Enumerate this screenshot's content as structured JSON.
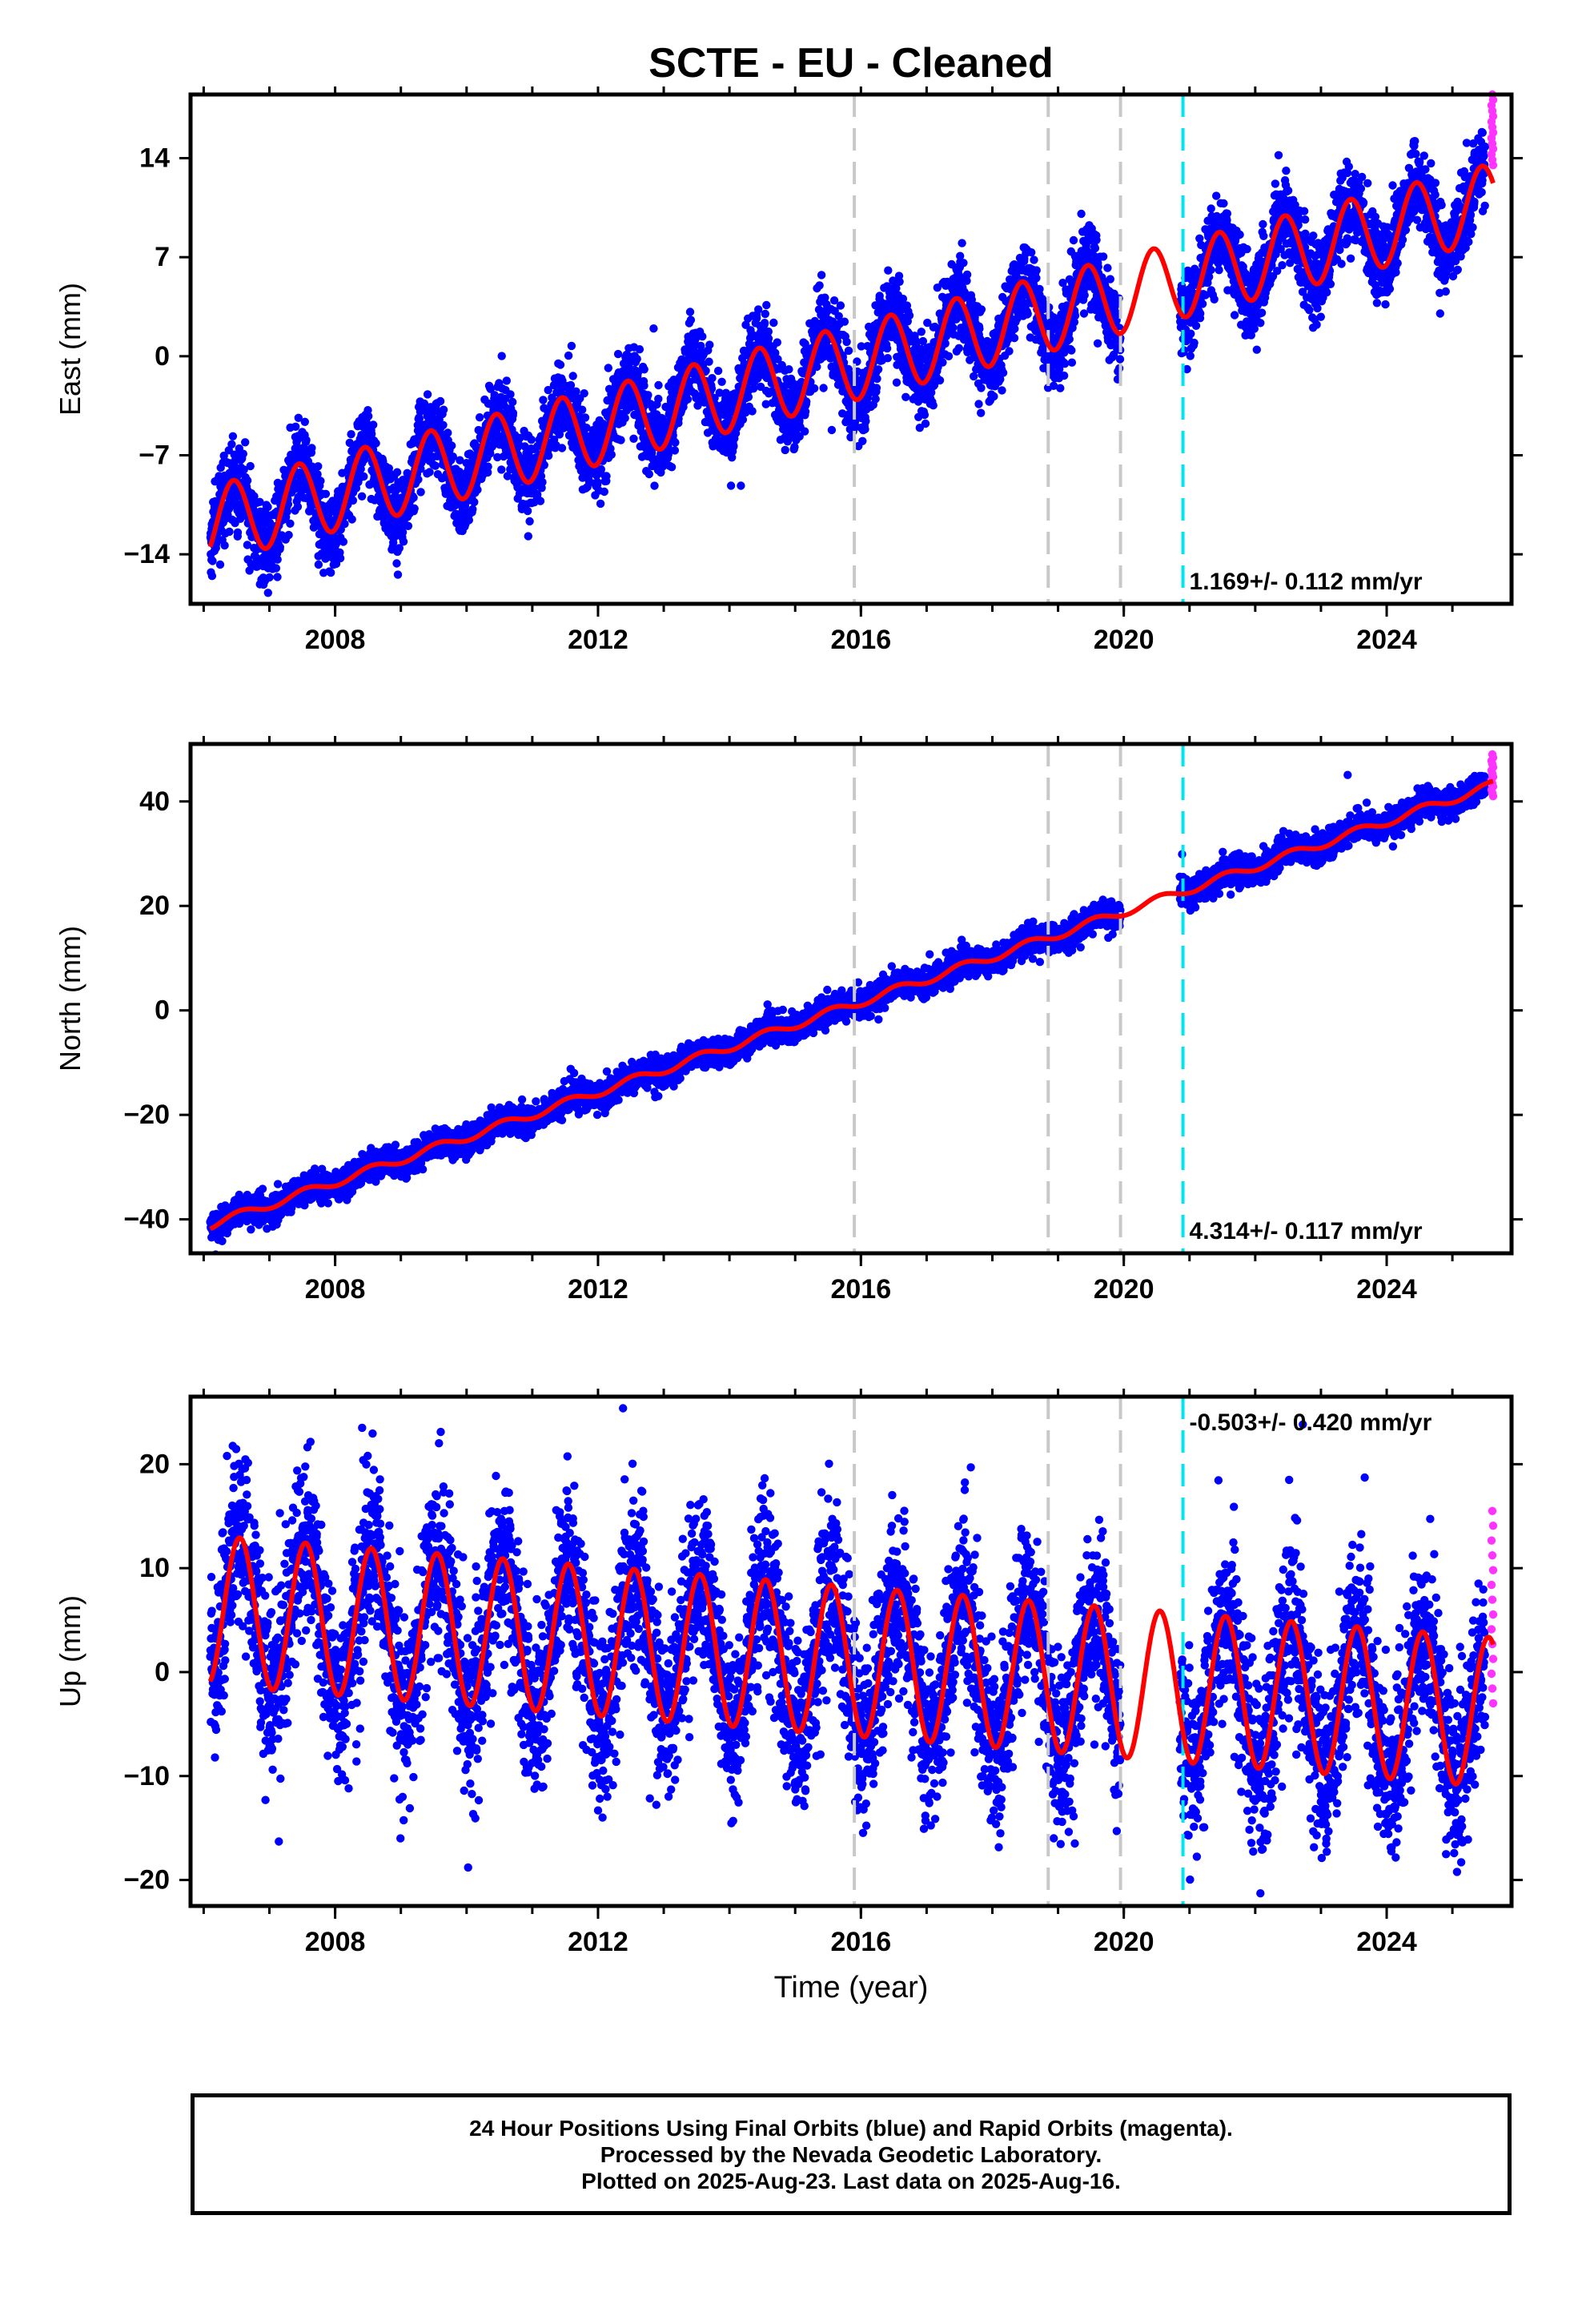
{
  "title": "SCTE  - EU - Cleaned",
  "colors": {
    "final_orbits": "#0000ff",
    "rapid_orbits": "#ff33ff",
    "model": "#ff0000",
    "equipment_change": "#c8c8c8",
    "earthquake_offset": "#00e5ee"
  },
  "chart_data": [
    {
      "type": "scatter",
      "component": "East",
      "ylabel": "East (mm)",
      "xlim": [
        2005.8,
        2025.9
      ],
      "ylim": [
        -17.5,
        18.5
      ],
      "yticks": [
        -14,
        -7,
        0,
        7,
        14
      ],
      "ytick_labels": [
        "−14",
        "−7",
        "0",
        "7",
        "14"
      ],
      "xticks": [
        2008,
        2012,
        2016,
        2020,
        2024
      ],
      "rate_label": "1.169+/- 0.112 mm/yr",
      "rate_position": "bottom-right",
      "model": {
        "value_at_2006": -12.0,
        "rate_mm_yr": 1.169,
        "annual_amplitude": 2.7,
        "peak_fraction_of_year": 0.45,
        "noise_mm": 1.4
      },
      "data_span": [
        2006.1,
        2025.62
      ],
      "data_gap": [
        2019.95,
        2020.85
      ],
      "rapid_orbit_span": [
        2025.5,
        2025.62
      ],
      "rapid_orbit_range": [
        13.5,
        18.5
      ],
      "equipment_change_epochs": [
        2015.9,
        2018.85,
        2019.95
      ],
      "offset_epoch": 2020.9
    },
    {
      "type": "scatter",
      "component": "North",
      "ylabel": "North (mm)",
      "xlim": [
        2005.8,
        2025.9
      ],
      "ylim": [
        -46.5,
        51
      ],
      "yticks": [
        -40,
        -20,
        0,
        20,
        40
      ],
      "ytick_labels": [
        "−40",
        "−20",
        "0",
        "20",
        "40"
      ],
      "xticks": [
        2008,
        2012,
        2016,
        2020,
        2024
      ],
      "rate_label": "4.314+/- 0.117 mm/yr",
      "rate_position": "bottom-right",
      "model": {
        "value_at_2006": -41.5,
        "rate_mm_yr": 4.314,
        "annual_amplitude": 0.8,
        "peak_fraction_of_year": 0.55,
        "noise_mm": 1.3
      },
      "data_span": [
        2006.1,
        2025.62
      ],
      "data_gap": [
        2019.95,
        2020.85
      ],
      "rapid_orbit_span": [
        2025.5,
        2025.62
      ],
      "rapid_orbit_range": [
        41,
        49
      ],
      "equipment_change_epochs": [
        2015.9,
        2018.85,
        2019.95
      ],
      "offset_epoch": 2020.9
    },
    {
      "type": "scatter",
      "component": "Up",
      "ylabel": "Up (mm)",
      "xlim": [
        2005.8,
        2025.9
      ],
      "ylim": [
        -22.5,
        26.5
      ],
      "yticks": [
        -20,
        -10,
        0,
        10,
        20
      ],
      "ytick_labels": [
        "−20",
        "−10",
        "0",
        "10",
        "20"
      ],
      "xticks": [
        2008,
        2012,
        2016,
        2020,
        2024
      ],
      "xlabel": "Time (year)",
      "rate_label": "-0.503+/- 0.420 mm/yr",
      "rate_position": "top-right",
      "model": {
        "value_at_2006": 6.0,
        "rate_mm_yr": -0.503,
        "annual_amplitude": 7.2,
        "peak_fraction_of_year": 0.55,
        "noise_mm": 4.2
      },
      "data_span": [
        2006.1,
        2025.62
      ],
      "data_gap": [
        2019.95,
        2020.85
      ],
      "rapid_orbit_span": [
        2025.5,
        2025.62
      ],
      "rapid_orbit_range": [
        -3,
        15.5
      ],
      "equipment_change_epochs": [
        2015.9,
        2018.85,
        2019.95
      ],
      "offset_epoch": 2020.9
    }
  ],
  "footer": {
    "line1": "24 Hour Positions Using Final Orbits (blue) and Rapid Orbits (magenta).",
    "line2": "Processed by the Nevada Geodetic Laboratory.",
    "line3": "Plotted on 2025-Aug-23. Last data on 2025-Aug-16."
  }
}
